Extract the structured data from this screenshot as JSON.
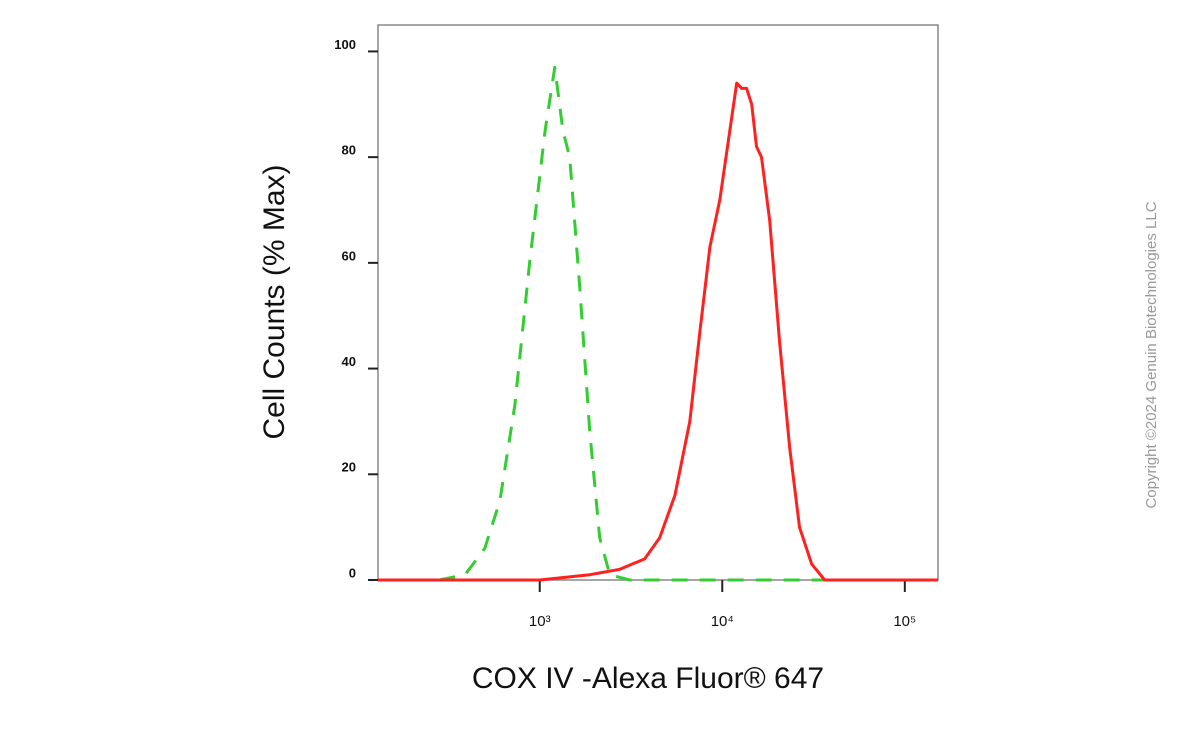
{
  "chart_data": {
    "type": "line",
    "y_label": "Cell Counts (% Max)",
    "x_label": "COX IV  -Alexa Fluor® 647",
    "copyright": "Copyright ©2024 Genuin Biotechnologies LLC",
    "x_scale": "log",
    "xlim": [
      130,
      152000
    ],
    "ylim": [
      0,
      105
    ],
    "xticks": [
      {
        "value": 1000,
        "label": "10³"
      },
      {
        "value": 10000,
        "label": "10⁴"
      },
      {
        "value": 100000,
        "label": "10⁵"
      }
    ],
    "yticks": [
      0,
      20,
      40,
      60,
      80,
      100
    ],
    "series": [
      {
        "color": "#33cc33",
        "dashed": true,
        "x": [
          282,
          390,
          500,
          605,
          730,
          880,
          1070,
          1210,
          1340,
          1460,
          1660,
          1880,
          2130,
          2420,
          3110,
          5000,
          20000,
          40000
        ],
        "values": [
          0,
          1,
          6,
          15,
          33,
          60,
          85,
          97,
          85,
          80,
          55,
          28,
          8,
          1,
          0,
          0,
          0,
          0
        ]
      },
      {
        "color": "#ff2020",
        "dashed": false,
        "x": [
          130,
          1000,
          1880,
          2740,
          3760,
          4540,
          5500,
          6640,
          7540,
          8550,
          9700,
          11000,
          12000,
          12800,
          13600,
          14500,
          15400,
          16400,
          18200,
          20600,
          23400,
          26500,
          30900,
          36400,
          152000
        ],
        "values": [
          0,
          0,
          1,
          2,
          4,
          8,
          16,
          30,
          47,
          63,
          72,
          85,
          94,
          93,
          93,
          90,
          82,
          80,
          68,
          45,
          25,
          10,
          3,
          0,
          0
        ]
      }
    ]
  }
}
